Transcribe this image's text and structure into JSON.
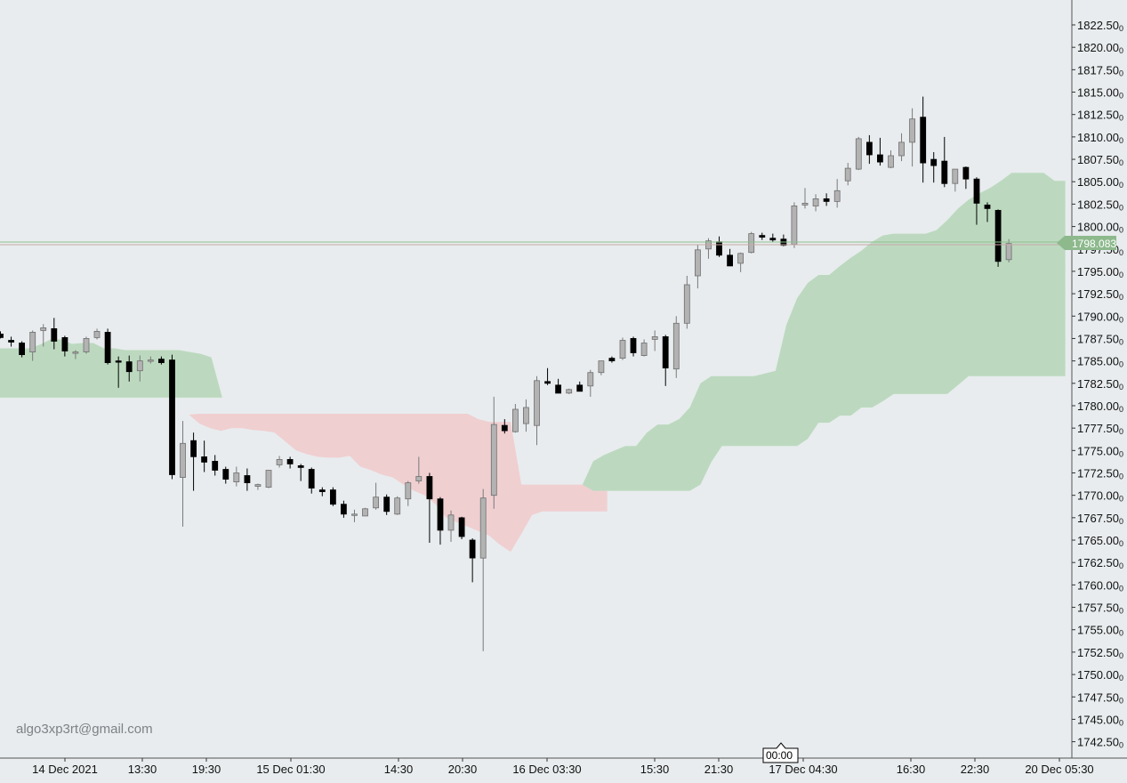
{
  "chart_data": {
    "type": "candlestick",
    "ylim": [
      1740.0,
      1825.0
    ],
    "y_ticks": [
      "1822.50",
      "1820.00",
      "1817.50",
      "1815.00",
      "1812.50",
      "1810.00",
      "1807.50",
      "1805.00",
      "1802.50",
      "1800.00",
      "1797.50",
      "1795.00",
      "1792.50",
      "1790.00",
      "1787.50",
      "1785.00",
      "1782.50",
      "1780.00",
      "1777.50",
      "1775.00",
      "1772.50",
      "1770.00",
      "1767.50",
      "1765.00",
      "1762.50",
      "1760.00",
      "1757.50",
      "1755.00",
      "1752.50",
      "1750.00",
      "1747.50",
      "1745.00",
      "1742.50"
    ],
    "price_suffix": "0",
    "x_labels": [
      "14 Dec 2021",
      "13:30",
      "19:30",
      "15 Dec 01:30",
      "14:30",
      "20:30",
      "16 Dec 03:30",
      "15:30",
      "21:30",
      "17 Dec 04:30",
      "16:30",
      "22:30",
      "20 Dec 05:30"
    ],
    "current_price": "1798.083",
    "crosshair_time": "00:00",
    "watermark": "algo3xp3rt@gmail.com",
    "colors": {
      "background": "#e8ecee",
      "bull_candle": "#b3b3b3",
      "bear_candle": "#000000",
      "cloud_bullish": "#bcd9bf",
      "cloud_bearish": "#f0cfd1",
      "price_line": "#8fbf8f",
      "price_badge": "#8db98d"
    },
    "candles": [
      {
        "o": 1788.0,
        "h": 1788.3,
        "l": 1787.5,
        "c": 1787.6
      },
      {
        "o": 1787.3,
        "h": 1787.7,
        "l": 1786.6,
        "c": 1787.1
      },
      {
        "o": 1787.0,
        "h": 1787.2,
        "l": 1785.4,
        "c": 1785.7
      },
      {
        "o": 1786.0,
        "h": 1788.4,
        "l": 1785.0,
        "c": 1788.2
      },
      {
        "o": 1788.4,
        "h": 1789.1,
        "l": 1786.6,
        "c": 1788.7
      },
      {
        "o": 1788.6,
        "h": 1789.8,
        "l": 1786.3,
        "c": 1787.2
      },
      {
        "o": 1787.6,
        "h": 1787.8,
        "l": 1785.5,
        "c": 1786.1
      },
      {
        "o": 1786.0,
        "h": 1786.2,
        "l": 1785.2,
        "c": 1786.0
      },
      {
        "o": 1786.0,
        "h": 1787.7,
        "l": 1785.8,
        "c": 1787.5
      },
      {
        "o": 1787.6,
        "h": 1788.6,
        "l": 1787.4,
        "c": 1788.3
      },
      {
        "o": 1788.2,
        "h": 1788.6,
        "l": 1784.6,
        "c": 1784.8
      },
      {
        "o": 1785.0,
        "h": 1785.5,
        "l": 1782.0,
        "c": 1784.9
      },
      {
        "o": 1784.9,
        "h": 1785.6,
        "l": 1782.7,
        "c": 1783.8
      },
      {
        "o": 1783.9,
        "h": 1785.6,
        "l": 1782.7,
        "c": 1785.0
      },
      {
        "o": 1785.1,
        "h": 1785.5,
        "l": 1784.7,
        "c": 1785.1
      },
      {
        "o": 1785.2,
        "h": 1785.5,
        "l": 1784.6,
        "c": 1784.8
      },
      {
        "o": 1785.1,
        "h": 1785.7,
        "l": 1771.8,
        "c": 1772.3
      },
      {
        "o": 1772.0,
        "h": 1778.3,
        "l": 1766.5,
        "c": 1775.8
      },
      {
        "o": 1776.1,
        "h": 1777.0,
        "l": 1770.5,
        "c": 1774.3
      },
      {
        "o": 1774.3,
        "h": 1776.1,
        "l": 1772.6,
        "c": 1773.7
      },
      {
        "o": 1773.8,
        "h": 1774.5,
        "l": 1772.2,
        "c": 1772.8
      },
      {
        "o": 1772.9,
        "h": 1773.2,
        "l": 1771.3,
        "c": 1771.8
      },
      {
        "o": 1771.5,
        "h": 1773.2,
        "l": 1771.0,
        "c": 1772.5
      },
      {
        "o": 1772.2,
        "h": 1773.0,
        "l": 1770.5,
        "c": 1771.4
      },
      {
        "o": 1771.0,
        "h": 1771.3,
        "l": 1770.6,
        "c": 1771.2
      },
      {
        "o": 1770.9,
        "h": 1772.6,
        "l": 1770.8,
        "c": 1772.8
      },
      {
        "o": 1773.4,
        "h": 1774.4,
        "l": 1773.1,
        "c": 1774.0
      },
      {
        "o": 1774.0,
        "h": 1774.3,
        "l": 1773.0,
        "c": 1773.5
      },
      {
        "o": 1773.3,
        "h": 1773.5,
        "l": 1771.6,
        "c": 1773.1
      },
      {
        "o": 1772.9,
        "h": 1773.1,
        "l": 1770.2,
        "c": 1770.8
      },
      {
        "o": 1770.6,
        "h": 1770.9,
        "l": 1769.9,
        "c": 1770.4
      },
      {
        "o": 1770.6,
        "h": 1770.9,
        "l": 1768.8,
        "c": 1769.0
      },
      {
        "o": 1769.0,
        "h": 1769.4,
        "l": 1767.5,
        "c": 1767.9
      },
      {
        "o": 1767.9,
        "h": 1768.4,
        "l": 1767.0,
        "c": 1767.9
      },
      {
        "o": 1767.7,
        "h": 1768.6,
        "l": 1767.7,
        "c": 1768.5
      },
      {
        "o": 1768.6,
        "h": 1771.4,
        "l": 1768.4,
        "c": 1769.8
      },
      {
        "o": 1769.8,
        "h": 1770.1,
        "l": 1767.8,
        "c": 1768.2
      },
      {
        "o": 1767.9,
        "h": 1769.9,
        "l": 1767.8,
        "c": 1769.7
      },
      {
        "o": 1769.6,
        "h": 1771.6,
        "l": 1768.8,
        "c": 1771.4
      },
      {
        "o": 1771.6,
        "h": 1774.3,
        "l": 1771.3,
        "c": 1772.1
      },
      {
        "o": 1772.1,
        "h": 1772.5,
        "l": 1764.7,
        "c": 1769.6
      },
      {
        "o": 1769.6,
        "h": 1769.8,
        "l": 1764.5,
        "c": 1766.1
      },
      {
        "o": 1766.1,
        "h": 1768.3,
        "l": 1764.8,
        "c": 1767.8
      },
      {
        "o": 1767.5,
        "h": 1767.6,
        "l": 1765.1,
        "c": 1765.4
      },
      {
        "o": 1765.0,
        "h": 1765.2,
        "l": 1760.3,
        "c": 1763.0
      },
      {
        "o": 1763.0,
        "h": 1770.7,
        "l": 1752.6,
        "c": 1769.7
      },
      {
        "o": 1770.0,
        "h": 1781.0,
        "l": 1768.5,
        "c": 1777.9
      },
      {
        "o": 1777.8,
        "h": 1778.5,
        "l": 1776.9,
        "c": 1777.2
      },
      {
        "o": 1777.1,
        "h": 1780.2,
        "l": 1777.0,
        "c": 1779.6
      },
      {
        "o": 1778.0,
        "h": 1780.7,
        "l": 1777.1,
        "c": 1779.8
      },
      {
        "o": 1777.8,
        "h": 1783.3,
        "l": 1775.6,
        "c": 1782.8
      },
      {
        "o": 1782.7,
        "h": 1784.2,
        "l": 1782.3,
        "c": 1782.5
      },
      {
        "o": 1782.3,
        "h": 1783.0,
        "l": 1781.6,
        "c": 1781.4
      },
      {
        "o": 1781.4,
        "h": 1781.9,
        "l": 1781.3,
        "c": 1781.8
      },
      {
        "o": 1782.3,
        "h": 1782.7,
        "l": 1781.6,
        "c": 1781.6
      },
      {
        "o": 1782.2,
        "h": 1784.0,
        "l": 1781.0,
        "c": 1783.7
      },
      {
        "o": 1783.7,
        "h": 1785.0,
        "l": 1783.4,
        "c": 1785.0
      },
      {
        "o": 1785.3,
        "h": 1785.5,
        "l": 1784.8,
        "c": 1785.0
      },
      {
        "o": 1785.3,
        "h": 1787.6,
        "l": 1785.1,
        "c": 1787.3
      },
      {
        "o": 1787.5,
        "h": 1787.7,
        "l": 1785.5,
        "c": 1785.9
      },
      {
        "o": 1785.6,
        "h": 1787.4,
        "l": 1785.5,
        "c": 1787.0
      },
      {
        "o": 1787.4,
        "h": 1788.4,
        "l": 1786.1,
        "c": 1787.7
      },
      {
        "o": 1787.7,
        "h": 1787.9,
        "l": 1782.2,
        "c": 1784.2
      },
      {
        "o": 1784.1,
        "h": 1790.0,
        "l": 1783.1,
        "c": 1789.2
      },
      {
        "o": 1789.2,
        "h": 1794.5,
        "l": 1788.6,
        "c": 1793.5
      },
      {
        "o": 1794.5,
        "h": 1798.0,
        "l": 1793.1,
        "c": 1797.4
      },
      {
        "o": 1797.5,
        "h": 1798.7,
        "l": 1796.4,
        "c": 1798.4
      },
      {
        "o": 1798.3,
        "h": 1798.9,
        "l": 1796.6,
        "c": 1796.8
      },
      {
        "o": 1796.8,
        "h": 1797.5,
        "l": 1795.8,
        "c": 1795.6
      },
      {
        "o": 1795.9,
        "h": 1797.1,
        "l": 1794.9,
        "c": 1797.0
      },
      {
        "o": 1797.1,
        "h": 1799.4,
        "l": 1797.0,
        "c": 1799.2
      },
      {
        "o": 1799.0,
        "h": 1799.3,
        "l": 1798.5,
        "c": 1798.8
      },
      {
        "o": 1798.7,
        "h": 1799.2,
        "l": 1798.3,
        "c": 1798.5
      },
      {
        "o": 1798.6,
        "h": 1799.1,
        "l": 1797.8,
        "c": 1797.9
      },
      {
        "o": 1798.0,
        "h": 1802.7,
        "l": 1797.6,
        "c": 1802.3
      },
      {
        "o": 1802.4,
        "h": 1804.3,
        "l": 1802.0,
        "c": 1802.6
      },
      {
        "o": 1802.3,
        "h": 1803.6,
        "l": 1801.7,
        "c": 1803.1
      },
      {
        "o": 1803.1,
        "h": 1803.7,
        "l": 1802.3,
        "c": 1802.8
      },
      {
        "o": 1802.8,
        "h": 1805.3,
        "l": 1802.1,
        "c": 1804.0
      },
      {
        "o": 1805.1,
        "h": 1807.1,
        "l": 1804.6,
        "c": 1806.5
      },
      {
        "o": 1806.4,
        "h": 1810.0,
        "l": 1806.3,
        "c": 1809.8
      },
      {
        "o": 1809.4,
        "h": 1810.2,
        "l": 1807.0,
        "c": 1808.0
      },
      {
        "o": 1808.0,
        "h": 1809.9,
        "l": 1806.8,
        "c": 1807.2
      },
      {
        "o": 1806.6,
        "h": 1808.5,
        "l": 1806.5,
        "c": 1807.9
      },
      {
        "o": 1807.9,
        "h": 1810.4,
        "l": 1807.3,
        "c": 1809.4
      },
      {
        "o": 1809.4,
        "h": 1813.2,
        "l": 1806.7,
        "c": 1812.0
      },
      {
        "o": 1812.2,
        "h": 1814.5,
        "l": 1804.9,
        "c": 1807.1
      },
      {
        "o": 1807.5,
        "h": 1808.3,
        "l": 1804.9,
        "c": 1806.8
      },
      {
        "o": 1807.3,
        "h": 1810.0,
        "l": 1804.4,
        "c": 1804.8
      },
      {
        "o": 1804.8,
        "h": 1806.1,
        "l": 1803.9,
        "c": 1806.4
      },
      {
        "o": 1806.6,
        "h": 1806.7,
        "l": 1804.2,
        "c": 1805.3
      },
      {
        "o": 1805.3,
        "h": 1805.5,
        "l": 1800.2,
        "c": 1802.6
      },
      {
        "o": 1802.4,
        "h": 1802.7,
        "l": 1800.5,
        "c": 1802.0
      },
      {
        "o": 1801.8,
        "h": 1801.9,
        "l": 1795.5,
        "c": 1796.1
      },
      {
        "o": 1796.3,
        "h": 1798.6,
        "l": 1796.0,
        "c": 1798.1
      }
    ],
    "cloud_up_a": [
      1786.4,
      1786.4,
      1786.4,
      1786.4,
      1786.8,
      1787.4,
      1787.4,
      1786.9,
      1787.0,
      1787.0,
      1786.4,
      1786.4,
      1786.2,
      1786.2,
      1786.2,
      1786.2,
      1786.2,
      1786.2,
      1786.0,
      1785.8,
      1785.4,
      1781.0
    ],
    "cloud_up_b": [
      1780.9,
      1780.9,
      1780.9,
      1780.9,
      1780.9,
      1780.9,
      1780.9,
      1780.9,
      1780.9,
      1780.9,
      1780.9,
      1780.9,
      1780.9,
      1780.9,
      1780.9,
      1780.9,
      1780.9,
      1780.9,
      1780.9,
      1780.9,
      1780.9,
      1780.9
    ],
    "cloud_down_a": [
      1780.0,
      1779.0,
      1778.0,
      1777.5,
      1777.2,
      1777.5,
      1777.5,
      1777.3,
      1777.2,
      1777.0,
      1776.0,
      1775.0,
      1774.6,
      1774.3,
      1774.2,
      1774.2,
      1774.4,
      1773.2,
      1772.8,
      1772.3,
      1772.0,
      1771.2,
      1770.5,
      1770.0,
      1769.0,
      1767.5,
      1767.0,
      1766.5,
      1766.0,
      1765.5,
      1764.5,
      1763.7,
      1765.7,
      1767.8,
      1768.2,
      1768.2,
      1768.2,
      1768.2,
      1768.2,
      1768.2,
      1768.2
    ],
    "cloud_down_b": [
      1780.0,
      1779.0,
      1779.1,
      1779.1,
      1779.1,
      1779.1,
      1779.1,
      1779.1,
      1779.1,
      1779.1,
      1779.1,
      1779.1,
      1779.1,
      1779.1,
      1779.1,
      1779.1,
      1779.1,
      1779.1,
      1779.1,
      1779.1,
      1779.1,
      1779.1,
      1779.1,
      1779.1,
      1779.1,
      1779.1,
      1779.1,
      1779.1,
      1778.5,
      1778.2,
      1778.2,
      1778.2,
      1771.2,
      1771.2,
      1771.2,
      1771.2,
      1771.2,
      1771.2,
      1771.2,
      1771.2,
      1771.2
    ],
    "cloud_up2_a": [
      1771.2,
      1773.8,
      1774.5,
      1775.0,
      1775.5,
      1775.5,
      1777.0,
      1777.9,
      1777.9,
      1778.5,
      1779.8,
      1782.5,
      1783.3,
      1783.3,
      1783.3,
      1783.3,
      1783.3,
      1783.6,
      1783.9,
      1789.0,
      1792.0,
      1793.7,
      1794.6,
      1794.6,
      1795.6,
      1796.5,
      1797.3,
      1798.3,
      1799.0,
      1799.2,
      1799.2,
      1799.2,
      1799.2,
      1799.6,
      1800.7,
      1802.0,
      1803.0,
      1803.7,
      1804.3,
      1805.1,
      1806.0,
      1806.0,
      1806.0,
      1806.0,
      1805.1,
      1805.1
    ],
    "cloud_up2_b": [
      1771.2,
      1770.5,
      1770.5,
      1770.5,
      1770.5,
      1770.5,
      1770.5,
      1770.5,
      1770.5,
      1770.5,
      1770.5,
      1771.2,
      1773.7,
      1775.5,
      1775.5,
      1775.5,
      1775.5,
      1775.5,
      1775.5,
      1775.5,
      1775.5,
      1776.3,
      1778.1,
      1778.1,
      1778.9,
      1778.9,
      1779.8,
      1779.8,
      1780.5,
      1781.3,
      1781.3,
      1781.3,
      1781.3,
      1781.3,
      1781.3,
      1782.3,
      1783.3,
      1783.3,
      1783.3,
      1783.3,
      1783.3,
      1783.3,
      1783.3,
      1783.3,
      1783.3,
      1783.3
    ]
  }
}
